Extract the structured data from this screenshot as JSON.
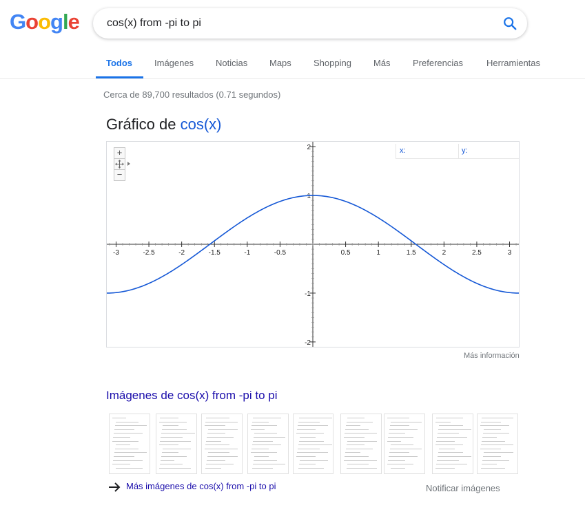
{
  "logo": {
    "letters": [
      "G",
      "o",
      "o",
      "g",
      "l",
      "e"
    ],
    "colors": [
      "#4285F4",
      "#EA4335",
      "#FBBC05",
      "#4285F4",
      "#34A853",
      "#EA4335"
    ]
  },
  "search": {
    "value": "cos(x) from -pi to pi",
    "icon": "search-icon",
    "accent": "#1a73e8"
  },
  "tabs": [
    {
      "label": "Todos",
      "active": true
    },
    {
      "label": "Imágenes",
      "active": false
    },
    {
      "label": "Noticias",
      "active": false
    },
    {
      "label": "Maps",
      "active": false
    },
    {
      "label": "Shopping",
      "active": false
    },
    {
      "label": "Más",
      "active": false
    },
    {
      "label": "Preferencias",
      "active": false
    },
    {
      "label": "Herramientas",
      "active": false
    }
  ],
  "stats": "Cerca de 89,700 resultados (0.71 segundos)",
  "graph": {
    "title_prefix": "Gráfico de",
    "title_fn": "cos(x)",
    "zoom_in": "+",
    "zoom_out": "−",
    "x_label": "x:",
    "y_label": "y:",
    "more_info": "Más información"
  },
  "chart_data": {
    "type": "line",
    "function": "cos(x)",
    "xlim": [
      -3.14159,
      3.14159
    ],
    "ylim": [
      -2.1,
      2.1
    ],
    "x_ticks": [
      "-3",
      "-2.5",
      "-2",
      "-1.5",
      "-1",
      "-0.5",
      "0.5",
      "1",
      "1.5",
      "2",
      "2.5",
      "3"
    ],
    "y_ticks": [
      "2",
      "1",
      "-1",
      "-2"
    ],
    "grid": false,
    "line_color": "#1558d6"
  },
  "images": {
    "title": "Imágenes de cos(x) from -pi to pi",
    "more": "Más imágenes de cos(x) from -pi to pi",
    "report": "Notificar imágenes",
    "thumb_count": 9
  }
}
